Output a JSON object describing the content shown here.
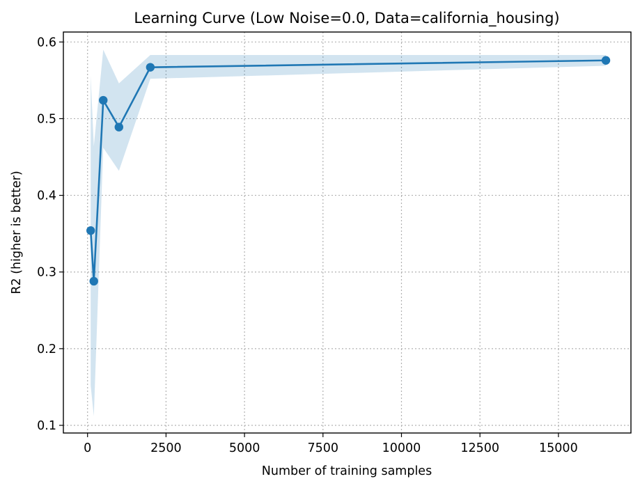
{
  "chart_data": {
    "type": "line",
    "title": "Learning Curve (Low Noise=0.0, Data=california_housing)",
    "xlabel": "Number of training samples",
    "ylabel": "R2 (higher is better)",
    "xlim": [
      -770,
      17310
    ],
    "ylim": [
      0.09,
      0.613
    ],
    "xticks": [
      0,
      2500,
      5000,
      7500,
      10000,
      12500,
      15000
    ],
    "xtick_labels": [
      "0",
      "2500",
      "5000",
      "7500",
      "10000",
      "12500",
      "15000"
    ],
    "yticks": [
      0.1,
      0.2,
      0.3,
      0.4,
      0.5,
      0.6
    ],
    "ytick_labels": [
      "0.1",
      "0.2",
      "0.3",
      "0.4",
      "0.5",
      "0.6"
    ],
    "grid": true,
    "series": [
      {
        "x": [
          100,
          200,
          500,
          1000,
          2000,
          16512
        ],
        "y": [
          0.354,
          0.288,
          0.524,
          0.489,
          0.567,
          0.576
        ],
        "lower": [
          0.152,
          0.112,
          0.462,
          0.432,
          0.552,
          0.569
        ],
        "upper": [
          0.556,
          0.464,
          0.59,
          0.546,
          0.583,
          0.583
        ],
        "color": "#1f77b4",
        "band_color": "#1f77b4",
        "band_opacity": 0.2
      }
    ]
  }
}
